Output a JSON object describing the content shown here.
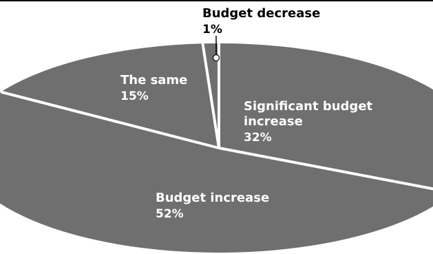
{
  "chart_data": {
    "type": "pie",
    "title": "",
    "slices": [
      {
        "label_lines": [
          "Significant budget",
          "increase"
        ],
        "value_text": "32%",
        "value": 32
      },
      {
        "label_lines": [
          "Budget increase"
        ],
        "value_text": "52%",
        "value": 52
      },
      {
        "label_lines": [
          "The same"
        ],
        "value_text": "15%",
        "value": 15
      },
      {
        "label_lines": [
          "Budget decrease"
        ],
        "value_text": "1%",
        "value": 1
      }
    ],
    "colors": {
      "slice_fill": "#6f6f6f",
      "separator": "#ffffff",
      "label_light": "#ffffff",
      "label_dark": "#000000",
      "frame_line": "#000000"
    }
  }
}
